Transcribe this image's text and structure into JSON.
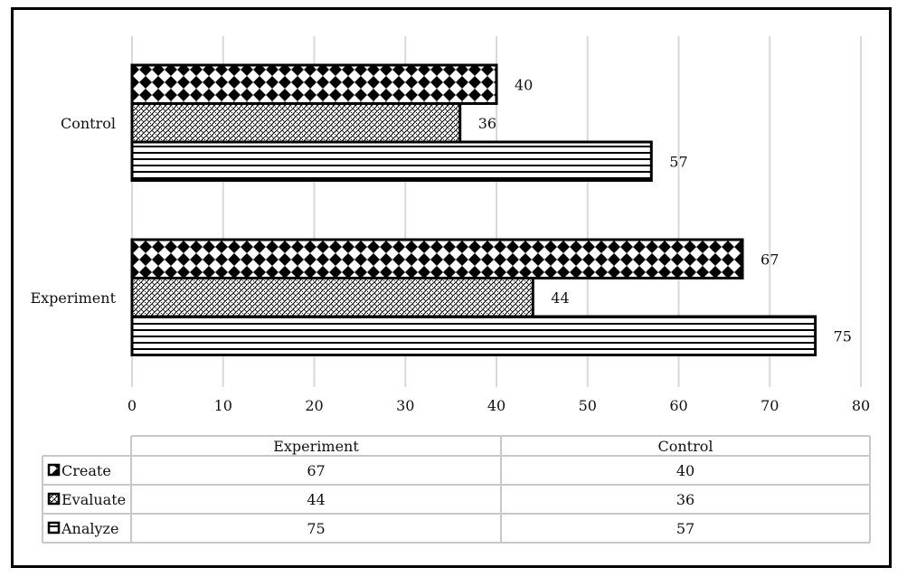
{
  "chart_data": {
    "type": "bar",
    "orientation": "horizontal",
    "categories": [
      "Experiment",
      "Control"
    ],
    "series": [
      {
        "name": "Create",
        "values": [
          67,
          40
        ],
        "pattern": "diamond-dots"
      },
      {
        "name": "Evaluate",
        "values": [
          44,
          36
        ],
        "pattern": "dense-weave"
      },
      {
        "name": "Analyze",
        "values": [
          75,
          57
        ],
        "pattern": "horizontal-lines"
      }
    ],
    "xlim": [
      0,
      80
    ],
    "xticks": [
      0,
      10,
      20,
      30,
      40,
      50,
      60,
      70,
      80
    ],
    "grid": true,
    "data_table": {
      "columns": [
        "Experiment",
        "Control"
      ],
      "rows": [
        {
          "label": "Create",
          "values": [
            "67",
            "40"
          ]
        },
        {
          "label": "Evaluate",
          "values": [
            "44",
            "36"
          ]
        },
        {
          "label": "Analyze",
          "values": [
            "75",
            "57"
          ]
        }
      ]
    },
    "colors": {
      "bar_fill": "#000000",
      "background": "#ffffff",
      "grid": "#d9d9d9"
    }
  }
}
